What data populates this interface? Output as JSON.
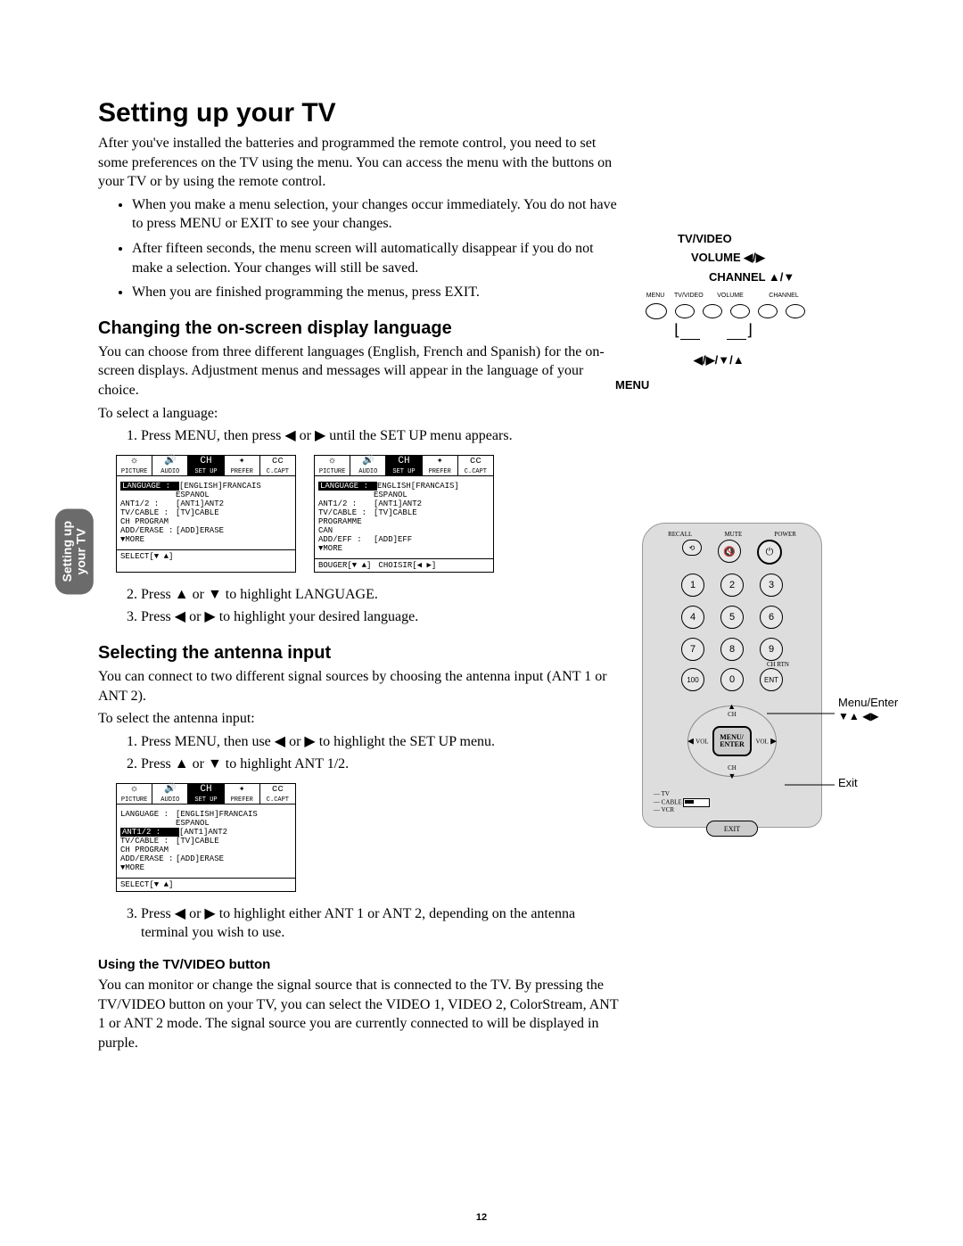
{
  "page_number": "12",
  "side_tab": "Setting up\nyour TV",
  "h1": "Setting up your TV",
  "intro": "After you've installed the batteries and programmed the remote control, you need to set some preferences on the TV using the menu. You can access the menu with the buttons on your TV or by using the remote control.",
  "bullets": [
    "When you make a menu selection, your changes occur immediately. You do not have to press MENU or EXIT to see your changes.",
    "After fifteen seconds, the menu screen will automatically disappear if you do not make a selection. Your changes will still be saved.",
    "When you are finished programming the menus, press EXIT."
  ],
  "h2a": "Changing the on-screen display language",
  "lang_intro": "You can choose from three different languages (English, French and Spanish) for the on-screen displays. Adjustment menus and messages will appear in the language of your choice.",
  "lang_to": "To select a language:",
  "lang_steps": {
    "s1": "Press MENU, then press ◀ or ▶ until the SET UP menu appears.",
    "s2": "Press ▲ or ▼ to highlight LANGUAGE.",
    "s3": "Press ◀ or ▶ to highlight your desired language."
  },
  "menu_tabs": [
    "PICTURE",
    "AUDIO",
    "SET UP",
    "PREFER",
    "C.CAPT"
  ],
  "menu_en_rows": [
    [
      "LANGUAGE :",
      "[ENGLISH]FRANCAIS"
    ],
    [
      "",
      "ESPANOL"
    ],
    [
      "ANT1/2 :",
      "[ANT1]ANT2"
    ],
    [
      "TV/CABLE :",
      "[TV]CABLE"
    ],
    [
      "CH  PROGRAM",
      ""
    ],
    [
      "ADD/ERASE :",
      "[ADD]ERASE"
    ],
    [
      "▼MORE",
      ""
    ]
  ],
  "menu_en_foot": "SELECT[▼ ▲]",
  "menu_fr_rows": [
    [
      "LANGUAGE :",
      "ENGLISH[FRANCAIS]"
    ],
    [
      "",
      "ESPANOL"
    ],
    [
      "ANT1/2 :",
      "[ANT1]ANT2"
    ],
    [
      "TV/CABLE :",
      "[TV]CABLE"
    ],
    [
      "PROGRAMME  CAN",
      ""
    ],
    [
      "ADD/EFF :",
      "[ADD]EFF"
    ],
    [
      "▼MORE",
      ""
    ]
  ],
  "menu_fr_foot_l": "BOUGER[▼ ▲]",
  "menu_fr_foot_r": "CHOISIR[◀ ▶]",
  "h2b": "Selecting the antenna input",
  "ant_intro": "You can connect to two different signal sources by choosing the antenna input (ANT 1 or ANT 2).",
  "ant_to": "To select the antenna input:",
  "ant_steps": {
    "s1": "Press MENU, then use ◀ or ▶ to highlight the SET UP menu.",
    "s2": "Press ▲ or ▼ to highlight ANT 1/2.",
    "s3": "Press ◀ or ▶ to highlight either ANT 1 or ANT 2, depending on the antenna terminal you wish to use."
  },
  "menu_ant_rows": [
    [
      "LANGUAGE :",
      "[ENGLISH]FRANCAIS"
    ],
    [
      "",
      "ESPANOL"
    ],
    [
      "ANT1/2 :",
      "[ANT1]ANT2"
    ],
    [
      "TV/CABLE :",
      "[TV]CABLE"
    ],
    [
      "CH  PROGRAM",
      ""
    ],
    [
      "ADD/ERASE :",
      "[ADD]ERASE"
    ],
    [
      "▼MORE",
      ""
    ]
  ],
  "h3": "Using the TV/VIDEO button",
  "tvvideo_text": "You can monitor or change the signal source that is connected to the TV. By pressing the TV/VIDEO button on your TV, you can select the VIDEO 1, VIDEO 2, ColorStream, ANT 1 or ANT 2 mode. The signal source you are currently connected to will be displayed in purple.",
  "tv_labels": {
    "tvvideo": "TV/VIDEO",
    "volume": "VOLUME ◀/▶",
    "channel": "CHANNEL ▲/▼",
    "arrows": "◀/▶/▼/▲",
    "menu": "MENU"
  },
  "tv_btn_labels": [
    "MENU",
    "TV/VIDEO",
    "VOLUME",
    "CHANNEL"
  ],
  "remote": {
    "top": [
      "RECALL",
      "MUTE",
      "POWER"
    ],
    "nums": [
      "1",
      "2",
      "3",
      "4",
      "5",
      "6",
      "7",
      "8",
      "9",
      "100",
      "0",
      "ENT"
    ],
    "chrtn": "CH RTN",
    "ch": "CH",
    "vol": "VOL",
    "center": "MENU/\nENTER",
    "exit": "EXIT",
    "sw": [
      "TV",
      "CABLE",
      "VCR"
    ]
  },
  "callouts": {
    "menu_enter": "Menu/Enter",
    "arrows": "▼▲ ◀▶",
    "exit": "Exit"
  }
}
